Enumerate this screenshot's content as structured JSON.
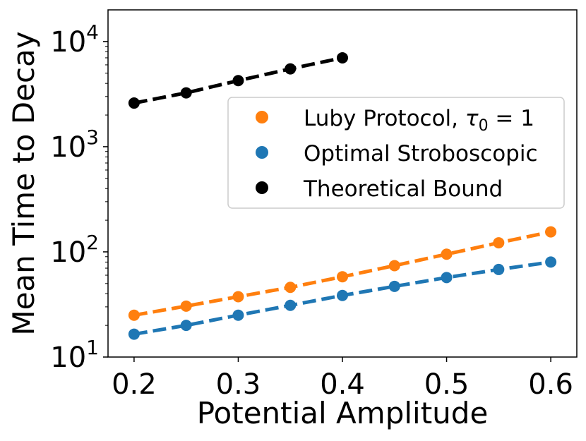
{
  "chart_data": {
    "type": "scatter",
    "title": "",
    "xlabel": "Potential Amplitude",
    "ylabel": "Mean Time to Decay",
    "xscale": "linear",
    "yscale": "log",
    "xlim": [
      0.175,
      0.625
    ],
    "ylim": [
      10,
      20000
    ],
    "x_ticks": [
      0.2,
      0.3,
      0.4,
      0.5,
      0.6
    ],
    "x_tick_labels": [
      "0.2",
      "0.3",
      "0.4",
      "0.5",
      "0.6"
    ],
    "y_ticks": [
      {
        "value": 10,
        "base": "10",
        "exp": "1"
      },
      {
        "value": 100,
        "base": "10",
        "exp": "2"
      },
      {
        "value": 1000,
        "base": "10",
        "exp": "3"
      },
      {
        "value": 10000,
        "base": "10",
        "exp": "4"
      }
    ],
    "legend_position": "center-right",
    "series": [
      {
        "name": "Luby Protocol, τ0 = 1",
        "legend_text": "Luby Protocol, ",
        "legend_math": {
          "symbol": "τ",
          "sub": "0",
          "rest": " = 1"
        },
        "color": "#ff7f0e",
        "x": [
          0.2,
          0.25,
          0.3,
          0.35,
          0.4,
          0.45,
          0.5,
          0.55,
          0.6
        ],
        "y": [
          25,
          30.5,
          37.5,
          46,
          58,
          74,
          95,
          122,
          155
        ],
        "fit_line": true
      },
      {
        "name": "Optimal Stroboscopic",
        "color": "#1f77b4",
        "x": [
          0.2,
          0.25,
          0.3,
          0.35,
          0.4,
          0.45,
          0.5,
          0.55,
          0.6
        ],
        "y": [
          16.5,
          20,
          25,
          31,
          38.5,
          47,
          57,
          68,
          80
        ],
        "fit_line": true
      },
      {
        "name": "Theoretical Bound",
        "color": "#000000",
        "x": [
          0.2,
          0.25,
          0.3,
          0.35,
          0.4
        ],
        "y": [
          2600,
          3250,
          4250,
          5500,
          7000
        ],
        "fit_line": true
      }
    ]
  }
}
